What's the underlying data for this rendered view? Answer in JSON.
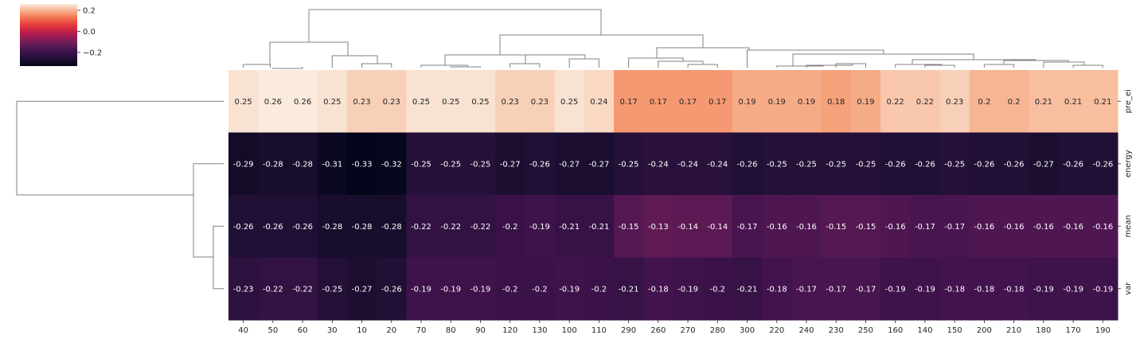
{
  "chart_data": {
    "type": "heatmap",
    "title": "",
    "xlabel": "",
    "ylabel": "",
    "x_categories": [
      "40",
      "50",
      "60",
      "30",
      "10",
      "20",
      "70",
      "80",
      "90",
      "120",
      "130",
      "100",
      "110",
      "290",
      "260",
      "270",
      "280",
      "300",
      "220",
      "240",
      "230",
      "250",
      "160",
      "140",
      "150",
      "200",
      "210",
      "180",
      "170",
      "190"
    ],
    "y_categories": [
      "pre_ei",
      "energy",
      "mean",
      "var"
    ],
    "values": [
      [
        0.25,
        0.26,
        0.26,
        0.25,
        0.23,
        0.23,
        0.25,
        0.25,
        0.25,
        0.23,
        0.23,
        0.25,
        0.24,
        0.17,
        0.17,
        0.17,
        0.17,
        0.19,
        0.19,
        0.19,
        0.18,
        0.19,
        0.22,
        0.22,
        0.23,
        0.2,
        0.2,
        0.21,
        0.21,
        0.21
      ],
      [
        -0.29,
        -0.28,
        -0.28,
        -0.31,
        -0.33,
        -0.32,
        -0.25,
        -0.25,
        -0.25,
        -0.27,
        -0.26,
        -0.27,
        -0.27,
        -0.25,
        -0.24,
        -0.24,
        -0.24,
        -0.26,
        -0.25,
        -0.25,
        -0.25,
        -0.25,
        -0.26,
        -0.26,
        -0.25,
        -0.26,
        -0.26,
        -0.27,
        -0.26,
        -0.26
      ],
      [
        -0.26,
        -0.26,
        -0.26,
        -0.28,
        -0.28,
        -0.28,
        -0.22,
        -0.22,
        -0.22,
        -0.2,
        -0.19,
        -0.21,
        -0.21,
        -0.15,
        -0.13,
        -0.14,
        -0.14,
        -0.17,
        -0.16,
        -0.16,
        -0.15,
        -0.15,
        -0.16,
        -0.17,
        -0.17,
        -0.16,
        -0.16,
        -0.16,
        -0.16,
        -0.16
      ],
      [
        -0.23,
        -0.22,
        -0.22,
        -0.25,
        -0.27,
        -0.26,
        -0.19,
        -0.19,
        -0.19,
        -0.2,
        -0.2,
        -0.19,
        -0.2,
        -0.21,
        -0.18,
        -0.19,
        -0.2,
        -0.21,
        -0.18,
        -0.17,
        -0.17,
        -0.17,
        -0.19,
        -0.19,
        -0.18,
        -0.18,
        -0.18,
        -0.19,
        -0.19,
        -0.19
      ]
    ],
    "colormap": "rocket",
    "colorbar": {
      "vmin": -0.33,
      "vmax": 0.26,
      "ticks": [
        0.2,
        0.0,
        -0.2
      ],
      "tick_labels": [
        "0.2",
        "0.0",
        "−0.2"
      ]
    },
    "dendrograms": {
      "rows": "left",
      "columns": "top"
    },
    "grid": false
  }
}
